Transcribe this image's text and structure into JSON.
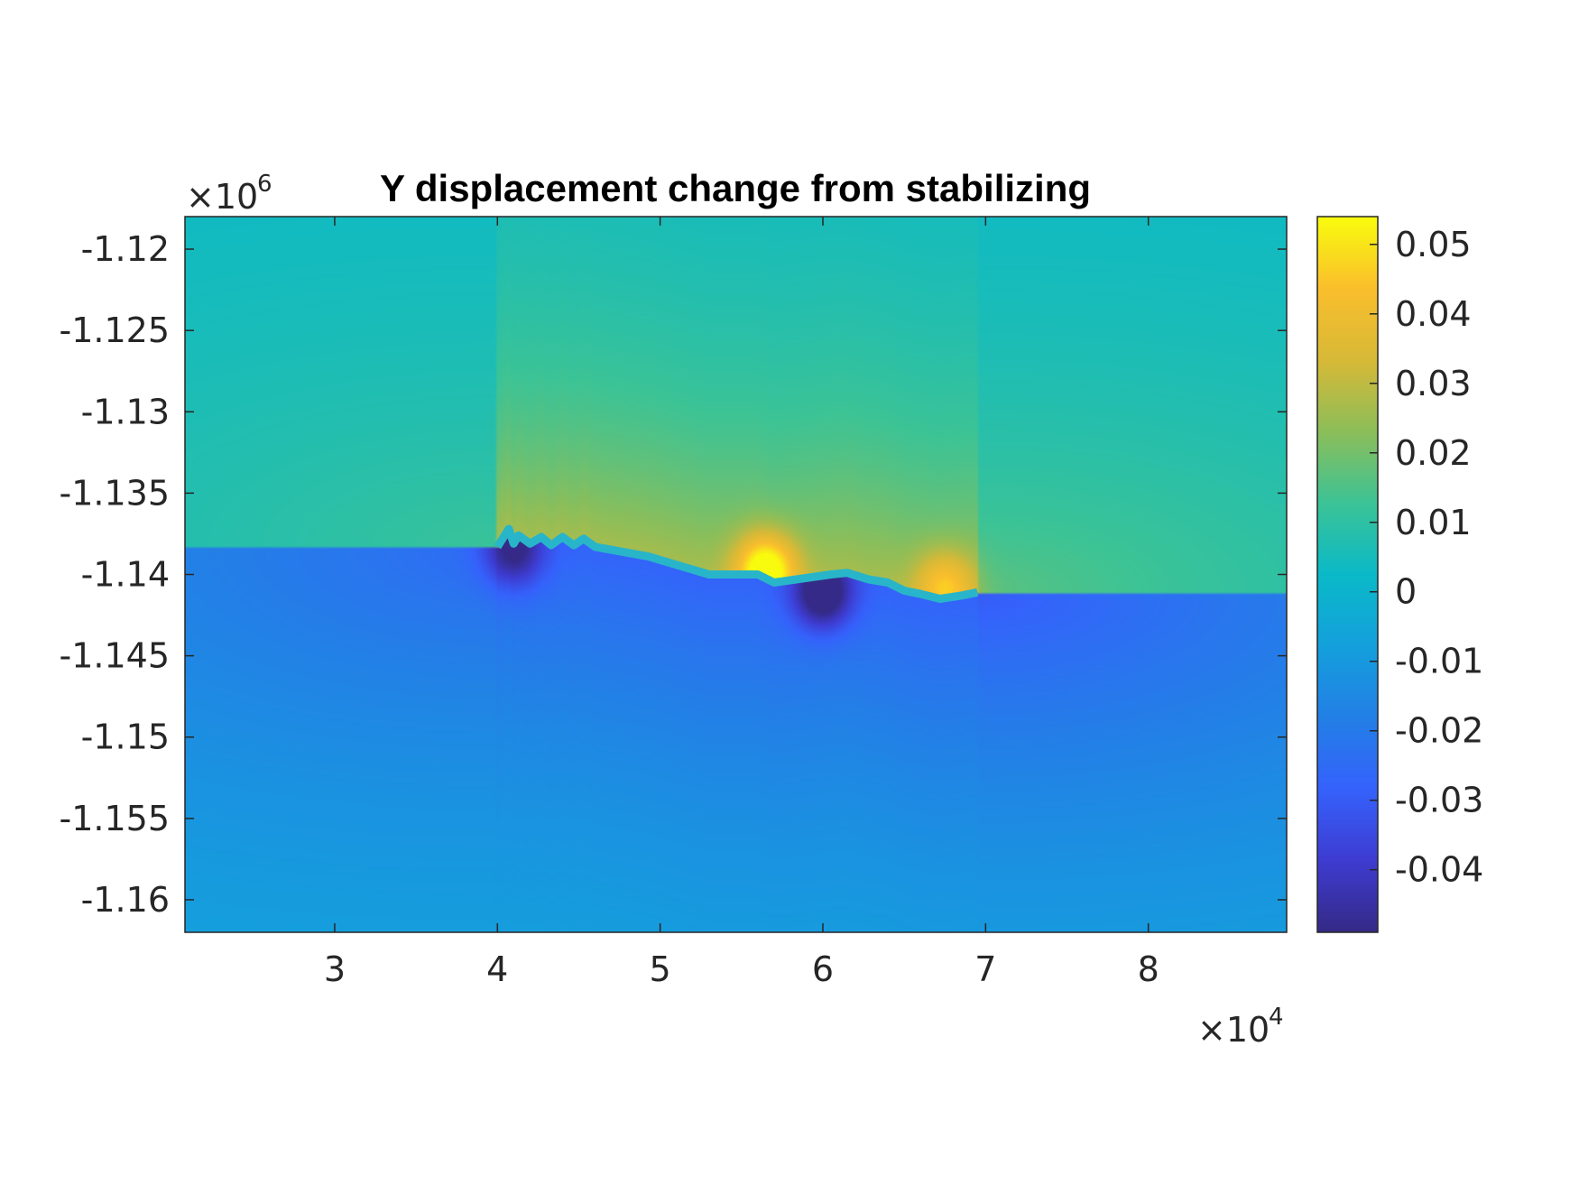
{
  "chart_data": {
    "type": "heatmap",
    "title": "Y displacement change from stabilizing",
    "xlabel": "",
    "ylabel": "",
    "x_multiplier": {
      "base": "×10",
      "exponent": "4"
    },
    "y_multiplier": {
      "base": "×10",
      "exponent": "6"
    },
    "xlim": [
      2.08,
      8.85
    ],
    "ylim": [
      -1.162,
      -1.118
    ],
    "x_ticks": [
      3,
      4,
      5,
      6,
      7,
      8
    ],
    "x_tick_labels": [
      "3",
      "4",
      "5",
      "6",
      "7",
      "8"
    ],
    "y_ticks": [
      -1.12,
      -1.125,
      -1.13,
      -1.135,
      -1.14,
      -1.145,
      -1.15,
      -1.155,
      -1.16
    ],
    "y_tick_labels": [
      "-1.12",
      "-1.125",
      "-1.13",
      "-1.135",
      "-1.14",
      "-1.145",
      "-1.15",
      "-1.155",
      "-1.16"
    ],
    "colorbar": {
      "colormap": "parula",
      "clim": [
        -0.049,
        0.054
      ],
      "ticks": [
        0.05,
        0.04,
        0.03,
        0.02,
        0.01,
        0,
        -0.01,
        -0.02,
        -0.03,
        -0.04
      ],
      "tick_labels": [
        "0.05",
        "0.04",
        "0.03",
        "0.02",
        "0.01",
        "0",
        "-0.01",
        "-0.02",
        "-0.03",
        "-0.04"
      ]
    },
    "fault_trace": [
      [
        4.0,
        -1.1383
      ],
      [
        4.07,
        -1.1372
      ],
      [
        4.1,
        -1.1381
      ],
      [
        4.13,
        -1.1376
      ],
      [
        4.2,
        -1.1381
      ],
      [
        4.27,
        -1.1377
      ],
      [
        4.33,
        -1.1382
      ],
      [
        4.4,
        -1.1377
      ],
      [
        4.47,
        -1.1382
      ],
      [
        4.53,
        -1.1378
      ],
      [
        4.6,
        -1.1383
      ],
      [
        4.93,
        -1.1389
      ],
      [
        5.3,
        -1.14
      ],
      [
        5.6,
        -1.14
      ],
      [
        5.7,
        -1.1405
      ],
      [
        6.05,
        -1.14
      ],
      [
        6.15,
        -1.1399
      ],
      [
        6.28,
        -1.1403
      ],
      [
        6.4,
        -1.1405
      ],
      [
        6.5,
        -1.141
      ],
      [
        6.6,
        -1.1412
      ],
      [
        6.72,
        -1.1415
      ],
      [
        6.85,
        -1.1413
      ],
      [
        6.95,
        -1.1411
      ]
    ],
    "features": [
      {
        "type": "positive peak",
        "x": 5.65,
        "y": -1.1398,
        "value": 0.054
      },
      {
        "type": "positive peak",
        "x": 6.75,
        "y": -1.1408,
        "value": 0.035
      },
      {
        "type": "negative peak",
        "x": 6.0,
        "y": -1.1411,
        "value": -0.049
      },
      {
        "type": "negative peak",
        "x": 4.1,
        "y": -1.1385,
        "value": -0.04
      }
    ],
    "grid": false,
    "legend": "colorbar right"
  }
}
